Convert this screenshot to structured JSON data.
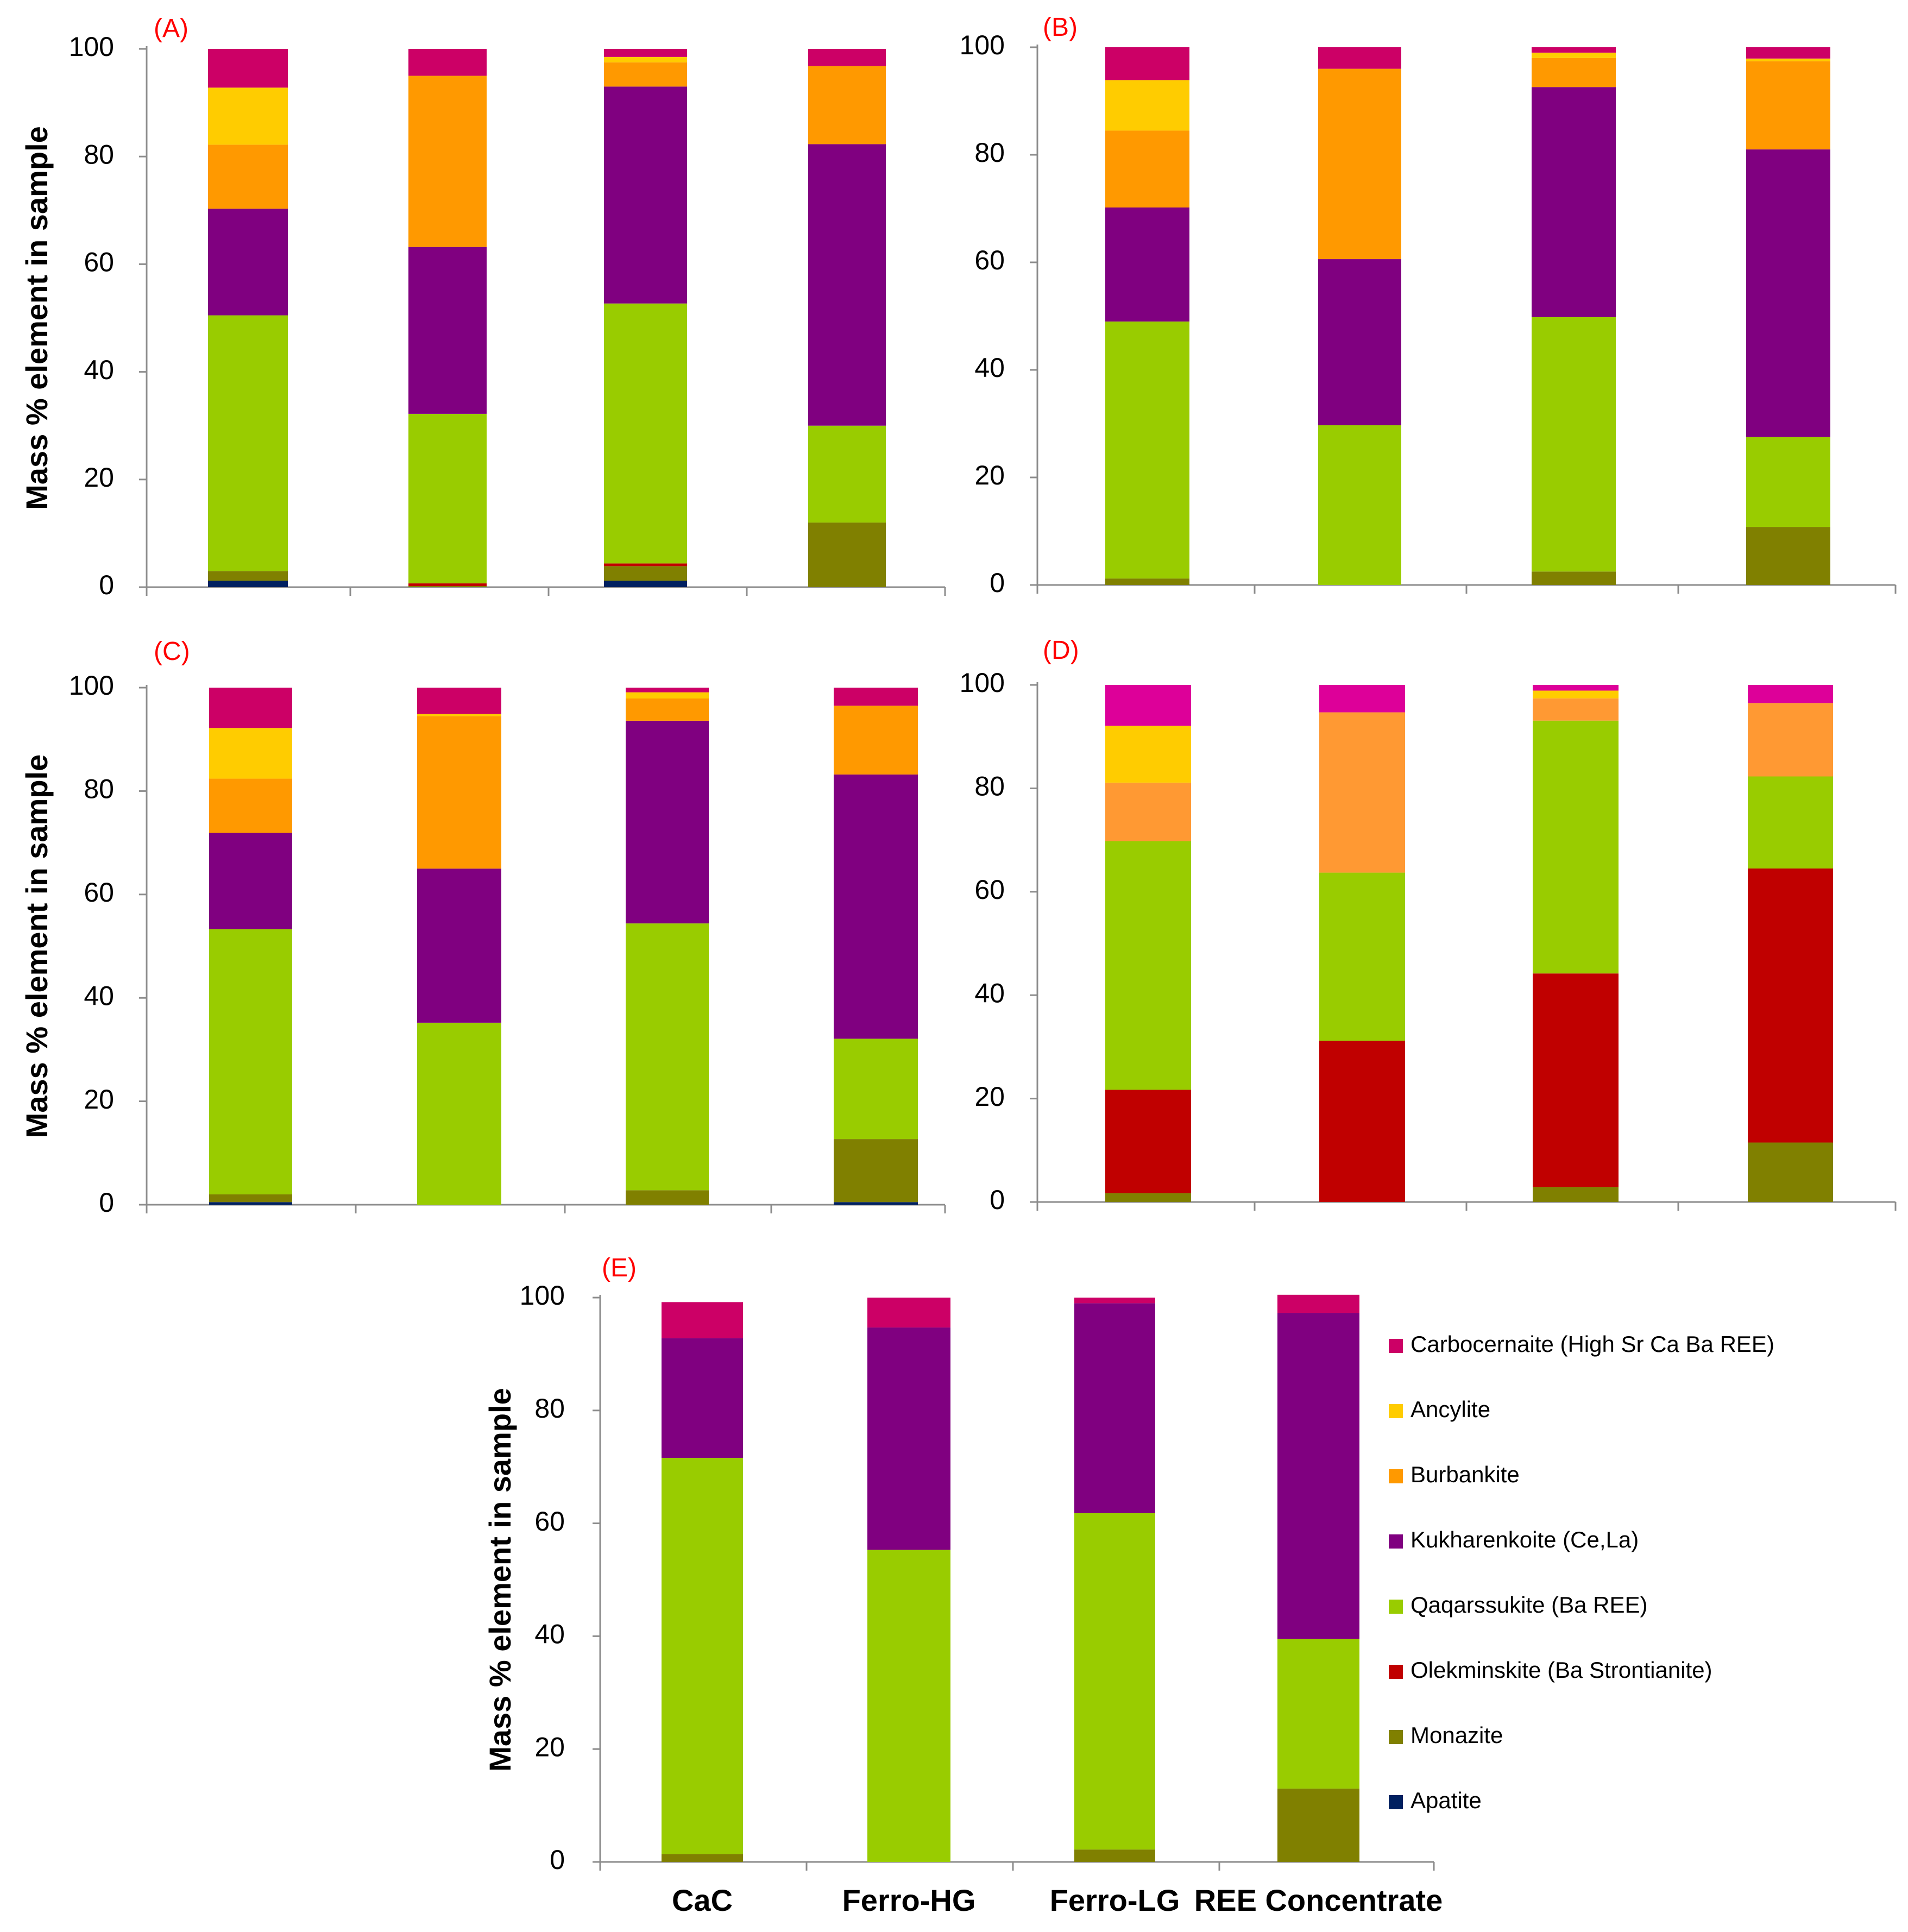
{
  "chart_data": [
    {
      "id": "A",
      "panel_label": "(A)",
      "type": "bar",
      "stacked": true,
      "ylabel": "Mass % element in sample",
      "ylim": [
        0,
        100
      ],
      "yticks": [
        0,
        20,
        40,
        60,
        80,
        100
      ],
      "categories": [
        "CaC",
        "Ferro-HG",
        "Ferro-LG",
        "REE Concentrate"
      ],
      "series": [
        {
          "name": "Apatite",
          "values": [
            1.2,
            0.0,
            1.2,
            0.0
          ]
        },
        {
          "name": "Monazite",
          "values": [
            1.8,
            0.2,
            2.7,
            12.0
          ]
        },
        {
          "name": "Olekminskite (Ba Strontianite)",
          "values": [
            0.0,
            0.5,
            0.5,
            0.0
          ]
        },
        {
          "name": "Qaqarssukite (Ba REE)",
          "values": [
            47.5,
            31.5,
            48.3,
            18.0
          ]
        },
        {
          "name": "Kukharenkoite (Ce,La)",
          "values": [
            19.8,
            31.0,
            40.3,
            52.3
          ]
        },
        {
          "name": "Burbankite",
          "values": [
            11.9,
            31.8,
            4.5,
            14.5
          ]
        },
        {
          "name": "Ancylite",
          "values": [
            10.6,
            0.0,
            1.0,
            0.0
          ]
        },
        {
          "name": "Carbocernaite (High Sr Ca Ba REE)",
          "values": [
            7.2,
            5.0,
            1.5,
            3.2
          ]
        }
      ]
    },
    {
      "id": "B",
      "panel_label": "(B)",
      "type": "bar",
      "stacked": true,
      "ylabel": "",
      "ylim": [
        0,
        100
      ],
      "yticks": [
        0,
        20,
        40,
        60,
        80,
        100
      ],
      "categories": [
        "CaC",
        "Ferro-HG",
        "Ferro-LG",
        "REE Concentrate"
      ],
      "series": [
        {
          "name": "Apatite",
          "values": [
            0.0,
            0.0,
            0.0,
            0.0
          ]
        },
        {
          "name": "Monazite",
          "values": [
            1.2,
            0.0,
            2.5,
            10.8
          ]
        },
        {
          "name": "Olekminskite (Ba Strontianite)",
          "values": [
            0.0,
            0.0,
            0.0,
            0.0
          ]
        },
        {
          "name": "Qaqarssukite (Ba REE)",
          "values": [
            47.8,
            29.7,
            47.3,
            16.7
          ]
        },
        {
          "name": "Kukharenkoite (Ce,La)",
          "values": [
            21.2,
            30.9,
            42.8,
            53.5
          ]
        },
        {
          "name": "Burbankite",
          "values": [
            14.3,
            35.4,
            5.4,
            16.4
          ]
        },
        {
          "name": "Ancylite",
          "values": [
            9.4,
            0.0,
            1.0,
            0.5
          ]
        },
        {
          "name": "Carbocernaite (High Sr Ca Ba REE)",
          "values": [
            6.1,
            4.0,
            1.0,
            2.1
          ]
        }
      ]
    },
    {
      "id": "C",
      "panel_label": "(C)",
      "type": "bar",
      "stacked": true,
      "ylabel": "Mass % element in sample",
      "ylim": [
        0,
        100
      ],
      "yticks": [
        0,
        20,
        40,
        60,
        80,
        100
      ],
      "categories": [
        "CaC",
        "Ferro-HG",
        "Ferro-LG",
        "REE Concentrate"
      ],
      "series": [
        {
          "name": "Apatite",
          "values": [
            0.5,
            0.0,
            0.0,
            0.5
          ]
        },
        {
          "name": "Monazite",
          "values": [
            1.5,
            0.0,
            2.8,
            12.2
          ]
        },
        {
          "name": "Olekminskite (Ba Strontianite)",
          "values": [
            0.0,
            0.0,
            0.0,
            0.0
          ]
        },
        {
          "name": "Qaqarssukite (Ba REE)",
          "values": [
            51.3,
            35.2,
            51.6,
            19.4
          ]
        },
        {
          "name": "Kukharenkoite (Ce,La)",
          "values": [
            18.6,
            29.8,
            39.2,
            51.1
          ]
        },
        {
          "name": "Burbankite",
          "values": [
            10.5,
            29.5,
            4.3,
            13.3
          ]
        },
        {
          "name": "Ancylite",
          "values": [
            9.8,
            0.4,
            1.2,
            0.0
          ]
        },
        {
          "name": "Carbocernaite (High Sr Ca Ba REE)",
          "values": [
            7.8,
            5.1,
            0.9,
            3.5
          ]
        }
      ]
    },
    {
      "id": "D",
      "panel_label": "(D)",
      "type": "bar",
      "stacked": true,
      "ylabel": "",
      "ylim": [
        0,
        100
      ],
      "yticks": [
        0,
        20,
        40,
        60,
        80,
        100
      ],
      "categories": [
        "CaC",
        "Ferro-HG",
        "Ferro-LG",
        "REE Concentrate"
      ],
      "series": [
        {
          "name": "Apatite",
          "values": [
            0.0,
            0.0,
            0.0,
            0.0
          ]
        },
        {
          "name": "Monazite",
          "values": [
            1.7,
            0.0,
            2.9,
            11.5
          ]
        },
        {
          "name": "Olekminskite (Ba Strontianite)",
          "values": [
            20.0,
            31.2,
            41.3,
            53.0
          ]
        },
        {
          "name": "Qaqarssukite (Ba REE)",
          "values": [
            48.1,
            32.5,
            48.9,
            17.8
          ]
        },
        {
          "name": "Kukharenkoite (Ce,La)",
          "values": [
            0.0,
            0.0,
            0.0,
            0.0
          ]
        },
        {
          "name": "Burbankite",
          "values": [
            11.3,
            31.0,
            4.3,
            14.2
          ]
        },
        {
          "name": "Ancylite",
          "values": [
            11.0,
            0.0,
            1.5,
            0.0
          ]
        },
        {
          "name": "Carbocernaite (High Sr Ca Ba REE)",
          "values": [
            7.9,
            5.3,
            1.1,
            3.5
          ]
        }
      ]
    },
    {
      "id": "E",
      "panel_label": "(E)",
      "type": "bar",
      "stacked": true,
      "ylabel": "Mass % element in sample",
      "ylim": [
        0,
        100
      ],
      "yticks": [
        0,
        20,
        40,
        60,
        80,
        100
      ],
      "categories": [
        "CaC",
        "Ferro-HG",
        "Ferro-LG",
        "REE Concentrate"
      ],
      "series": [
        {
          "name": "Apatite",
          "values": [
            0.0,
            0.0,
            0.0,
            0.0
          ]
        },
        {
          "name": "Monazite",
          "values": [
            1.4,
            0.0,
            2.2,
            13.0
          ]
        },
        {
          "name": "Olekminskite (Ba Strontianite)",
          "values": [
            0.0,
            0.0,
            0.0,
            0.0
          ]
        },
        {
          "name": "Qaqarssukite (Ba REE)",
          "values": [
            70.2,
            55.3,
            59.6,
            26.5
          ]
        },
        {
          "name": "Kukharenkoite (Ce,La)",
          "values": [
            21.2,
            39.4,
            37.2,
            57.8
          ]
        },
        {
          "name": "Burbankite",
          "values": [
            0.0,
            0.0,
            0.0,
            0.0
          ]
        },
        {
          "name": "Ancylite",
          "values": [
            0.0,
            0.0,
            0.0,
            0.0
          ]
        },
        {
          "name": "Carbocernaite (High Sr Ca Ba REE)",
          "values": [
            6.4,
            5.3,
            1.0,
            3.2
          ]
        }
      ]
    }
  ],
  "legend": {
    "placement": "right of panel E",
    "items": [
      {
        "name": "Carbocernaite (High Sr Ca Ba REE)",
        "color": "#cc0066"
      },
      {
        "name": "Ancylite",
        "color": "#ffcc00"
      },
      {
        "name": "Burbankite",
        "color": "#ff9900"
      },
      {
        "name": "Kukharenkoite (Ce,La)",
        "color": "#800080"
      },
      {
        "name": "Qaqarssukite (Ba REE)",
        "color": "#99cc00"
      },
      {
        "name": "Olekminskite (Ba Strontianite)",
        "color": "#c00000"
      },
      {
        "name": "Monazite",
        "color": "#808000"
      },
      {
        "name": "Apatite",
        "color": "#002060"
      }
    ]
  },
  "colors": {
    "Apatite": "#002060",
    "Monazite": "#808000",
    "Olekminskite (Ba Strontianite)": "#c00000",
    "Qaqarssukite (Ba REE)": "#99cc00",
    "Kukharenkoite (Ce,La)": "#800080",
    "Burbankite": "#ff9900",
    "Burbankite_D": "#ff9933",
    "Ancylite": "#ffcc00",
    "Carbocernaite (High Sr Ca Ba REE)": "#cc0066",
    "Carbocernaite_D": "#dd0099",
    "panel_label": "#ff0000"
  }
}
